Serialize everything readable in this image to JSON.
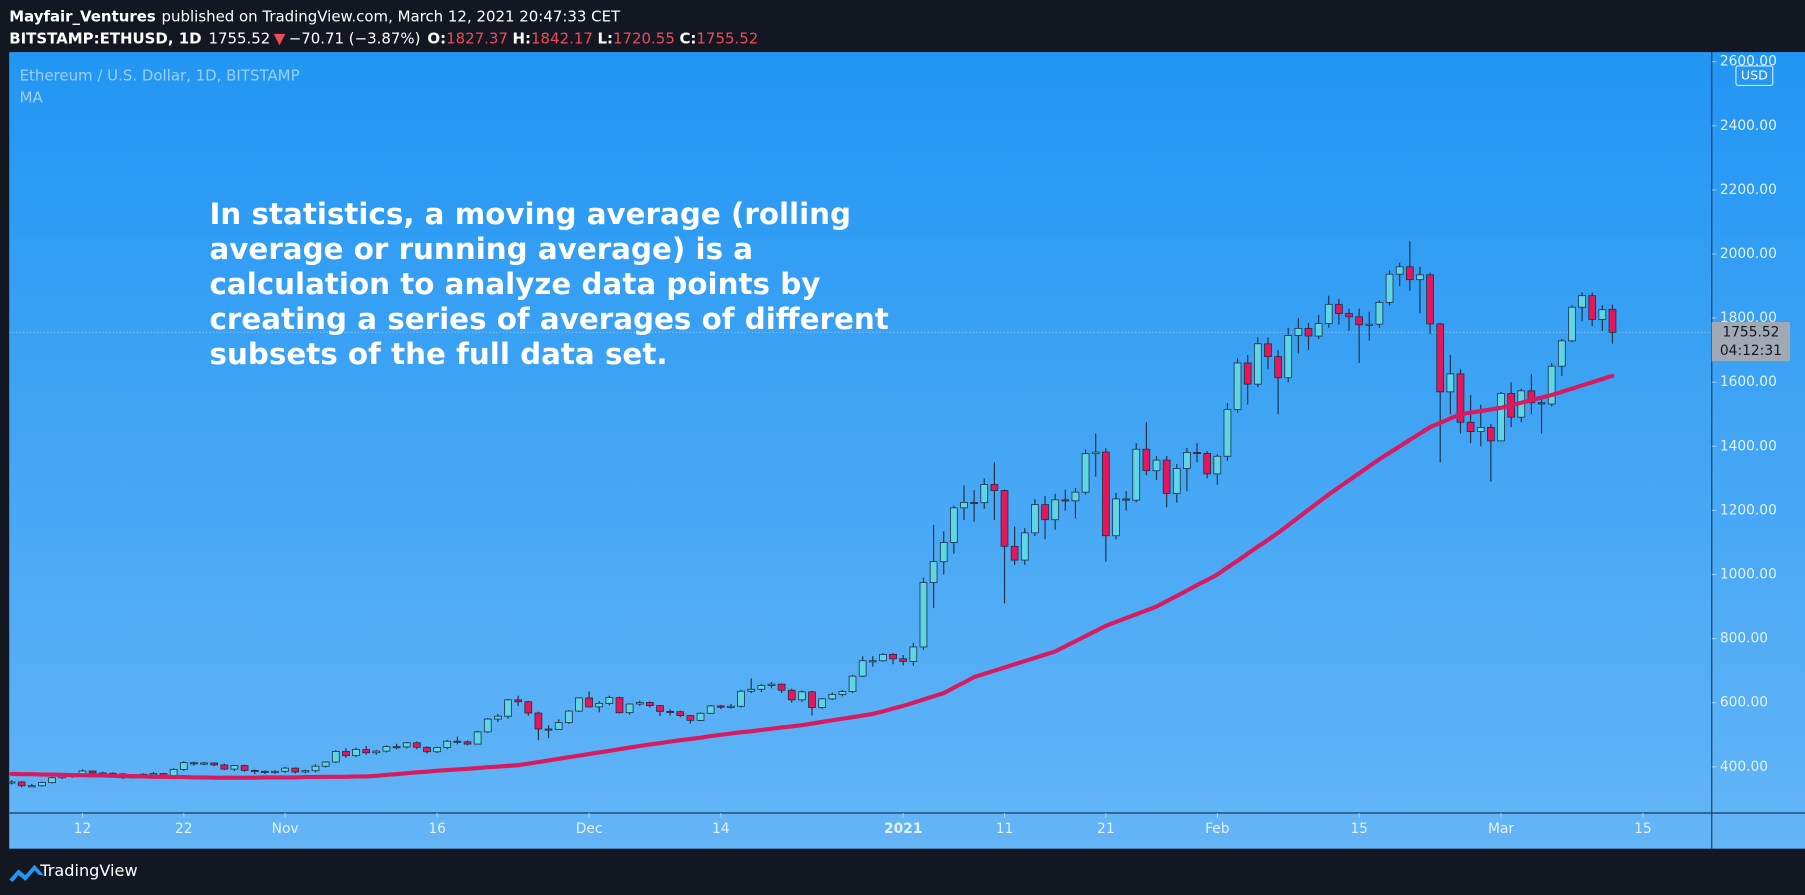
{
  "header": {
    "author": "Mayfair_Ventures",
    "published": "published on TradingView.com, March 12, 2021 20:47:33 CET",
    "symbol": "BITSTAMP:ETHUSD, 1D",
    "last": "1755.52",
    "arrow": "▼",
    "change": "−70.71 (−3.87%)",
    "ohlc": [
      {
        "key": "O:",
        "value": "1827.37"
      },
      {
        "key": "H:",
        "value": "1842.17"
      },
      {
        "key": "L:",
        "value": "1720.55"
      },
      {
        "key": "C:",
        "value": "1755.52"
      }
    ]
  },
  "brand": "TradingView",
  "chart_data": {
    "type": "candlestick",
    "title": "Ethereum / U.S. Dollar, 1D, BITSTAMP",
    "up_color": "#5fd6e6",
    "down_color": "#e5175a",
    "outline_color": "#1f2f45",
    "open": [
      350,
      353,
      341,
      341,
      351,
      366,
      371,
      376,
      387,
      381,
      380,
      378,
      366,
      369,
      377,
      379,
      368,
      392,
      413,
      409,
      412,
      406,
      393,
      404,
      389,
      386,
      383,
      386,
      396,
      384,
      388,
      402,
      415,
      448,
      435,
      454,
      444,
      449,
      463,
      462,
      475,
      461,
      447,
      460,
      480,
      478,
      471,
      509,
      549,
      558,
      609,
      603,
      568,
      518,
      517,
      538,
      574,
      615,
      587,
      598,
      616,
      569,
      596,
      601,
      591,
      573,
      572,
      560,
      545,
      567,
      590,
      586,
      589,
      636,
      642,
      654,
      658,
      639,
      609,
      634,
      585,
      612,
      626,
      635,
      683,
      731,
      731,
      751,
      737,
      729,
      774,
      975,
      1040,
      1100,
      1208,
      1225,
      1224,
      1281,
      1262,
      1088,
      1045,
      1130,
      1218,
      1171,
      1233,
      1230,
      1257,
      1377,
      1382,
      1121,
      1236,
      1232,
      1391,
      1324,
      1357,
      1253,
      1331,
      1381,
      1378,
      1314,
      1369,
      1515,
      1660,
      1594,
      1720,
      1680,
      1614,
      1746,
      1768,
      1744,
      1783,
      1843,
      1814,
      1804,
      1779,
      1781,
      1849,
      1937,
      1960,
      1920,
      1935,
      1782,
      1570,
      1626,
      1475,
      1446,
      1459,
      1417,
      1565,
      1491,
      1573,
      1536,
      1532,
      1650,
      1729,
      1834,
      1870,
      1796,
      1827.37
    ],
    "high": [
      358,
      355,
      347,
      354,
      369,
      375,
      380,
      392,
      389,
      385,
      383,
      380,
      372,
      380,
      384,
      381,
      396,
      418,
      416,
      415,
      414,
      410,
      406,
      407,
      392,
      389,
      390,
      400,
      398,
      391,
      408,
      418,
      452,
      458,
      460,
      465,
      453,
      467,
      472,
      478,
      479,
      464,
      463,
      484,
      494,
      482,
      512,
      552,
      565,
      612,
      622,
      606,
      572,
      530,
      548,
      577,
      617,
      635,
      605,
      622,
      619,
      598,
      607,
      604,
      593,
      579,
      575,
      562,
      570,
      593,
      593,
      596,
      640,
      676,
      658,
      665,
      660,
      644,
      639,
      637,
      615,
      632,
      640,
      687,
      745,
      745,
      755,
      755,
      749,
      787,
      990,
      1155,
      1135,
      1215,
      1278,
      1263,
      1300,
      1350,
      1265,
      1150,
      1145,
      1235,
      1245,
      1252,
      1265,
      1270,
      1390,
      1440,
      1395,
      1255,
      1260,
      1410,
      1475,
      1370,
      1370,
      1345,
      1395,
      1410,
      1385,
      1375,
      1535,
      1675,
      1685,
      1740,
      1740,
      1700,
      1770,
      1800,
      1785,
      1810,
      1870,
      1860,
      1830,
      1830,
      1820,
      1855,
      1948,
      1973,
      2040,
      1960,
      1942,
      1785,
      1685,
      1640,
      1560,
      1530,
      1470,
      1570,
      1600,
      1580,
      1625,
      1550,
      1660,
      1735,
      1840,
      1880,
      1880,
      1840,
      1842.17
    ],
    "low": [
      345,
      336,
      337,
      338,
      348,
      362,
      366,
      372,
      375,
      372,
      370,
      362,
      364,
      366,
      372,
      365,
      366,
      388,
      404,
      405,
      402,
      390,
      387,
      385,
      377,
      378,
      378,
      381,
      379,
      380,
      383,
      398,
      412,
      428,
      430,
      438,
      438,
      445,
      455,
      458,
      455,
      442,
      443,
      455,
      470,
      467,
      470,
      506,
      540,
      550,
      590,
      560,
      483,
      490,
      515,
      534,
      571,
      585,
      570,
      592,
      566,
      563,
      590,
      585,
      558,
      560,
      555,
      535,
      543,
      565,
      580,
      582,
      585,
      630,
      633,
      645,
      630,
      600,
      603,
      560,
      580,
      608,
      620,
      630,
      680,
      713,
      728,
      720,
      716,
      715,
      765,
      895,
      1000,
      1065,
      1170,
      1165,
      1205,
      1170,
      910,
      1030,
      1030,
      1120,
      1110,
      1140,
      1200,
      1175,
      1250,
      1305,
      1040,
      1110,
      1200,
      1225,
      1310,
      1295,
      1210,
      1225,
      1260,
      1350,
      1300,
      1280,
      1355,
      1505,
      1530,
      1585,
      1640,
      1500,
      1600,
      1690,
      1700,
      1735,
      1770,
      1780,
      1760,
      1660,
      1730,
      1770,
      1840,
      1900,
      1885,
      1815,
      1750,
      1350,
      1500,
      1440,
      1410,
      1400,
      1290,
      1415,
      1460,
      1475,
      1500,
      1440,
      1525,
      1620,
      1725,
      1790,
      1775,
      1760,
      1720.55
    ],
    "close": [
      353,
      341,
      341,
      351,
      366,
      371,
      376,
      387,
      381,
      380,
      378,
      366,
      369,
      377,
      379,
      368,
      392,
      413,
      409,
      412,
      406,
      393,
      404,
      389,
      386,
      383,
      386,
      396,
      384,
      388,
      402,
      415,
      448,
      435,
      454,
      444,
      449,
      463,
      462,
      475,
      461,
      447,
      460,
      480,
      478,
      471,
      509,
      549,
      558,
      609,
      603,
      568,
      518,
      517,
      538,
      574,
      615,
      587,
      598,
      616,
      569,
      596,
      601,
      591,
      573,
      572,
      560,
      545,
      567,
      590,
      586,
      589,
      636,
      642,
      654,
      658,
      639,
      609,
      634,
      585,
      612,
      626,
      635,
      683,
      731,
      731,
      751,
      737,
      729,
      774,
      975,
      1040,
      1100,
      1208,
      1225,
      1224,
      1281,
      1262,
      1088,
      1045,
      1130,
      1218,
      1171,
      1233,
      1230,
      1257,
      1377,
      1382,
      1121,
      1236,
      1232,
      1391,
      1324,
      1357,
      1253,
      1331,
      1381,
      1378,
      1314,
      1369,
      1515,
      1660,
      1594,
      1720,
      1680,
      1614,
      1746,
      1768,
      1744,
      1783,
      1843,
      1814,
      1804,
      1779,
      1781,
      1849,
      1937,
      1960,
      1920,
      1935,
      1782,
      1570,
      1626,
      1475,
      1446,
      1459,
      1417,
      1565,
      1491,
      1573,
      1536,
      1532,
      1650,
      1729,
      1834,
      1870,
      1796,
      1826.23,
      1755.52
    ],
    "series": [
      {
        "name": "MA",
        "color": "#d81b60",
        "values": [
          378,
          377,
          377,
          376,
          376,
          375,
          374,
          374,
          373,
          373,
          372,
          371,
          371,
          370,
          369,
          369,
          368,
          368,
          367,
          367,
          366,
          366,
          366,
          366,
          366,
          367,
          367,
          367,
          367,
          368,
          368,
          369,
          369,
          369,
          370,
          370,
          372,
          375,
          377,
          380,
          383,
          385,
          388,
          390,
          392,
          394,
          396,
          399,
          401,
          403,
          405,
          410,
          415,
          420,
          425,
          430,
          435,
          440,
          445,
          450,
          455,
          460,
          465,
          470,
          474,
          479,
          483,
          487,
          491,
          496,
          500,
          504,
          508,
          511,
          515,
          519,
          523,
          526,
          530,
          535,
          540,
          545,
          550,
          555,
          560,
          565,
          573,
          582,
          590,
          600,
          610,
          620,
          630,
          647,
          663,
          680,
          690,
          700,
          710,
          720,
          730,
          740,
          750,
          760,
          776,
          792,
          808,
          824,
          840,
          852,
          864,
          876,
          888,
          900,
          917,
          933,
          950,
          967,
          983,
          1000,
          1022,
          1043,
          1065,
          1087,
          1108,
          1130,
          1154,
          1178,
          1202,
          1226,
          1250,
          1272,
          1294,
          1316,
          1338,
          1360,
          1380,
          1400,
          1420,
          1440,
          1460,
          1473,
          1487,
          1500,
          1505,
          1510,
          1515,
          1520,
          1528,
          1536,
          1544,
          1552,
          1560,
          1570,
          1580,
          1590,
          1600,
          1610,
          1620
        ]
      }
    ],
    "xlim": [
      -0.23,
      167.8
    ],
    "xticks": [
      {
        "value": 7,
        "label": "12"
      },
      {
        "value": 17,
        "label": "22"
      },
      {
        "value": 27,
        "label": "Nov"
      },
      {
        "value": 42,
        "label": "16"
      },
      {
        "value": 57,
        "label": "Dec"
      },
      {
        "value": 70,
        "label": "14"
      },
      {
        "value": 88,
        "label": "2021"
      },
      {
        "value": 98,
        "label": "11"
      },
      {
        "value": 108,
        "label": "21"
      },
      {
        "value": 119,
        "label": "Feb"
      },
      {
        "value": 133,
        "label": "15"
      },
      {
        "value": 147,
        "label": "Mar"
      },
      {
        "value": 161,
        "label": "15"
      }
    ],
    "ylim": [
      256,
      2630
    ],
    "yticks": [
      {
        "value": 400,
        "label": "400.00"
      },
      {
        "value": 600,
        "label": "600.00"
      },
      {
        "value": 800,
        "label": "800.00"
      },
      {
        "value": 1000,
        "label": "1000.00"
      },
      {
        "value": 1200,
        "label": "1200.00"
      },
      {
        "value": 1400,
        "label": "1400.00"
      },
      {
        "value": 1600,
        "label": "1600.00"
      },
      {
        "value": 1800,
        "label": "1800.00"
      },
      {
        "value": 2000,
        "label": "2000.00"
      },
      {
        "value": 2200,
        "label": "2200.00"
      },
      {
        "value": 2400,
        "label": "2400.00"
      },
      {
        "value": 2600,
        "label": "2600.00"
      }
    ],
    "currency": "USD",
    "countdown": "04:12:31",
    "annotation": [
      "In statistics, a moving average (rolling",
      "average or running average) is a",
      "calculation to analyze data points by",
      "creating a series of averages of different",
      "subsets of the full data set."
    ]
  }
}
